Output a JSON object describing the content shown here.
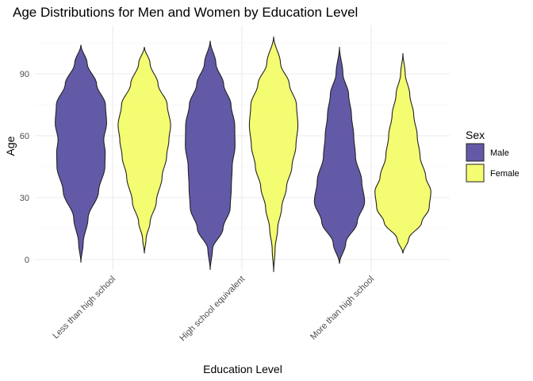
{
  "chart_data": {
    "type": "violin",
    "title": "Age Distributions for Men and Women by Education Level",
    "xlabel": "Education Level",
    "ylabel": "Age",
    "categories": [
      "Less than high school",
      "High school equivalent",
      "More than high school"
    ],
    "ylim": [
      -7,
      112
    ],
    "yticks": [
      0,
      30,
      60,
      90
    ],
    "grid": true,
    "legend": {
      "title": "Sex",
      "placement": "right"
    },
    "series": [
      {
        "name": "Male",
        "color": "#483d98",
        "groups": [
          {
            "category": "Less than high school",
            "min": -1.5,
            "max": 104,
            "profile": [
              [
                -1.5,
                0
              ],
              [
                8,
                0.08
              ],
              [
                20,
                0.25
              ],
              [
                33,
                0.62
              ],
              [
                45,
                0.84
              ],
              [
                52,
                0.85
              ],
              [
                58,
                0.8
              ],
              [
                66,
                0.9
              ],
              [
                75,
                0.86
              ],
              [
                85,
                0.55
              ],
              [
                95,
                0.22
              ],
              [
                104,
                0
              ]
            ]
          },
          {
            "category": "High school equivalent",
            "min": -5,
            "max": 106,
            "profile": [
              [
                -5,
                0
              ],
              [
                5,
                0.08
              ],
              [
                15,
                0.45
              ],
              [
                25,
                0.7
              ],
              [
                35,
                0.74
              ],
              [
                45,
                0.77
              ],
              [
                55,
                0.87
              ],
              [
                65,
                0.86
              ],
              [
                75,
                0.73
              ],
              [
                85,
                0.47
              ],
              [
                95,
                0.2
              ],
              [
                106,
                0
              ]
            ]
          },
          {
            "category": "More than high school",
            "min": -2,
            "max": 103,
            "profile": [
              [
                -2,
                0
              ],
              [
                8,
                0.22
              ],
              [
                18,
                0.62
              ],
              [
                28,
                0.88
              ],
              [
                38,
                0.78
              ],
              [
                50,
                0.56
              ],
              [
                60,
                0.5
              ],
              [
                70,
                0.42
              ],
              [
                80,
                0.32
              ],
              [
                90,
                0.12
              ],
              [
                103,
                0
              ]
            ]
          }
        ]
      },
      {
        "name": "Female",
        "color": "#f2fc58",
        "groups": [
          {
            "category": "Less than high school",
            "min": 3,
            "max": 103,
            "profile": [
              [
                3,
                0
              ],
              [
                10,
                0.06
              ],
              [
                18,
                0.2
              ],
              [
                28,
                0.42
              ],
              [
                40,
                0.62
              ],
              [
                50,
                0.78
              ],
              [
                58,
                0.86
              ],
              [
                65,
                0.92
              ],
              [
                75,
                0.8
              ],
              [
                85,
                0.48
              ],
              [
                95,
                0.2
              ],
              [
                103,
                0
              ]
            ]
          },
          {
            "category": "High school equivalent",
            "min": -6,
            "max": 108,
            "profile": [
              [
                -6,
                0
              ],
              [
                5,
                0.05
              ],
              [
                15,
                0.14
              ],
              [
                25,
                0.28
              ],
              [
                35,
                0.45
              ],
              [
                45,
                0.64
              ],
              [
                55,
                0.78
              ],
              [
                65,
                0.85
              ],
              [
                75,
                0.8
              ],
              [
                85,
                0.55
              ],
              [
                95,
                0.24
              ],
              [
                108,
                0
              ]
            ]
          },
          {
            "category": "More than high school",
            "min": 3,
            "max": 100,
            "profile": [
              [
                3,
                0
              ],
              [
                10,
                0.2
              ],
              [
                18,
                0.66
              ],
              [
                25,
                0.92
              ],
              [
                33,
                0.98
              ],
              [
                40,
                0.8
              ],
              [
                50,
                0.6
              ],
              [
                60,
                0.5
              ],
              [
                70,
                0.38
              ],
              [
                80,
                0.24
              ],
              [
                90,
                0.08
              ],
              [
                100,
                0
              ]
            ]
          }
        ]
      }
    ]
  }
}
